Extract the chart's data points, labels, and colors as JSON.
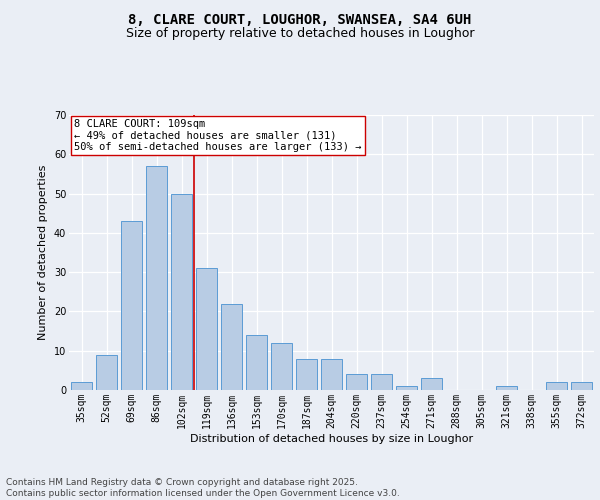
{
  "title_line1": "8, CLARE COURT, LOUGHOR, SWANSEA, SA4 6UH",
  "title_line2": "Size of property relative to detached houses in Loughor",
  "xlabel": "Distribution of detached houses by size in Loughor",
  "ylabel": "Number of detached properties",
  "categories": [
    "35sqm",
    "52sqm",
    "69sqm",
    "86sqm",
    "102sqm",
    "119sqm",
    "136sqm",
    "153sqm",
    "170sqm",
    "187sqm",
    "204sqm",
    "220sqm",
    "237sqm",
    "254sqm",
    "271sqm",
    "288sqm",
    "305sqm",
    "321sqm",
    "338sqm",
    "355sqm",
    "372sqm"
  ],
  "values": [
    2,
    9,
    43,
    57,
    50,
    31,
    22,
    14,
    12,
    8,
    8,
    4,
    4,
    1,
    3,
    0,
    0,
    1,
    0,
    2,
    2
  ],
  "bar_color": "#b8cce4",
  "bar_edge_color": "#5b9bd5",
  "vline_x": 4.5,
  "vline_color": "#cc0000",
  "annotation_text": "8 CLARE COURT: 109sqm\n← 49% of detached houses are smaller (131)\n50% of semi-detached houses are larger (133) →",
  "annotation_box_color": "#ffffff",
  "annotation_box_edge": "#cc0000",
  "ylim": [
    0,
    70
  ],
  "yticks": [
    0,
    10,
    20,
    30,
    40,
    50,
    60,
    70
  ],
  "footer_text": "Contains HM Land Registry data © Crown copyright and database right 2025.\nContains public sector information licensed under the Open Government Licence v3.0.",
  "bg_color": "#eaeef5",
  "plot_bg_color": "#eaeef5",
  "grid_color": "#ffffff",
  "title_fontsize": 10,
  "subtitle_fontsize": 9,
  "axis_label_fontsize": 8,
  "tick_fontsize": 7,
  "annotation_fontsize": 7.5,
  "footer_fontsize": 6.5
}
